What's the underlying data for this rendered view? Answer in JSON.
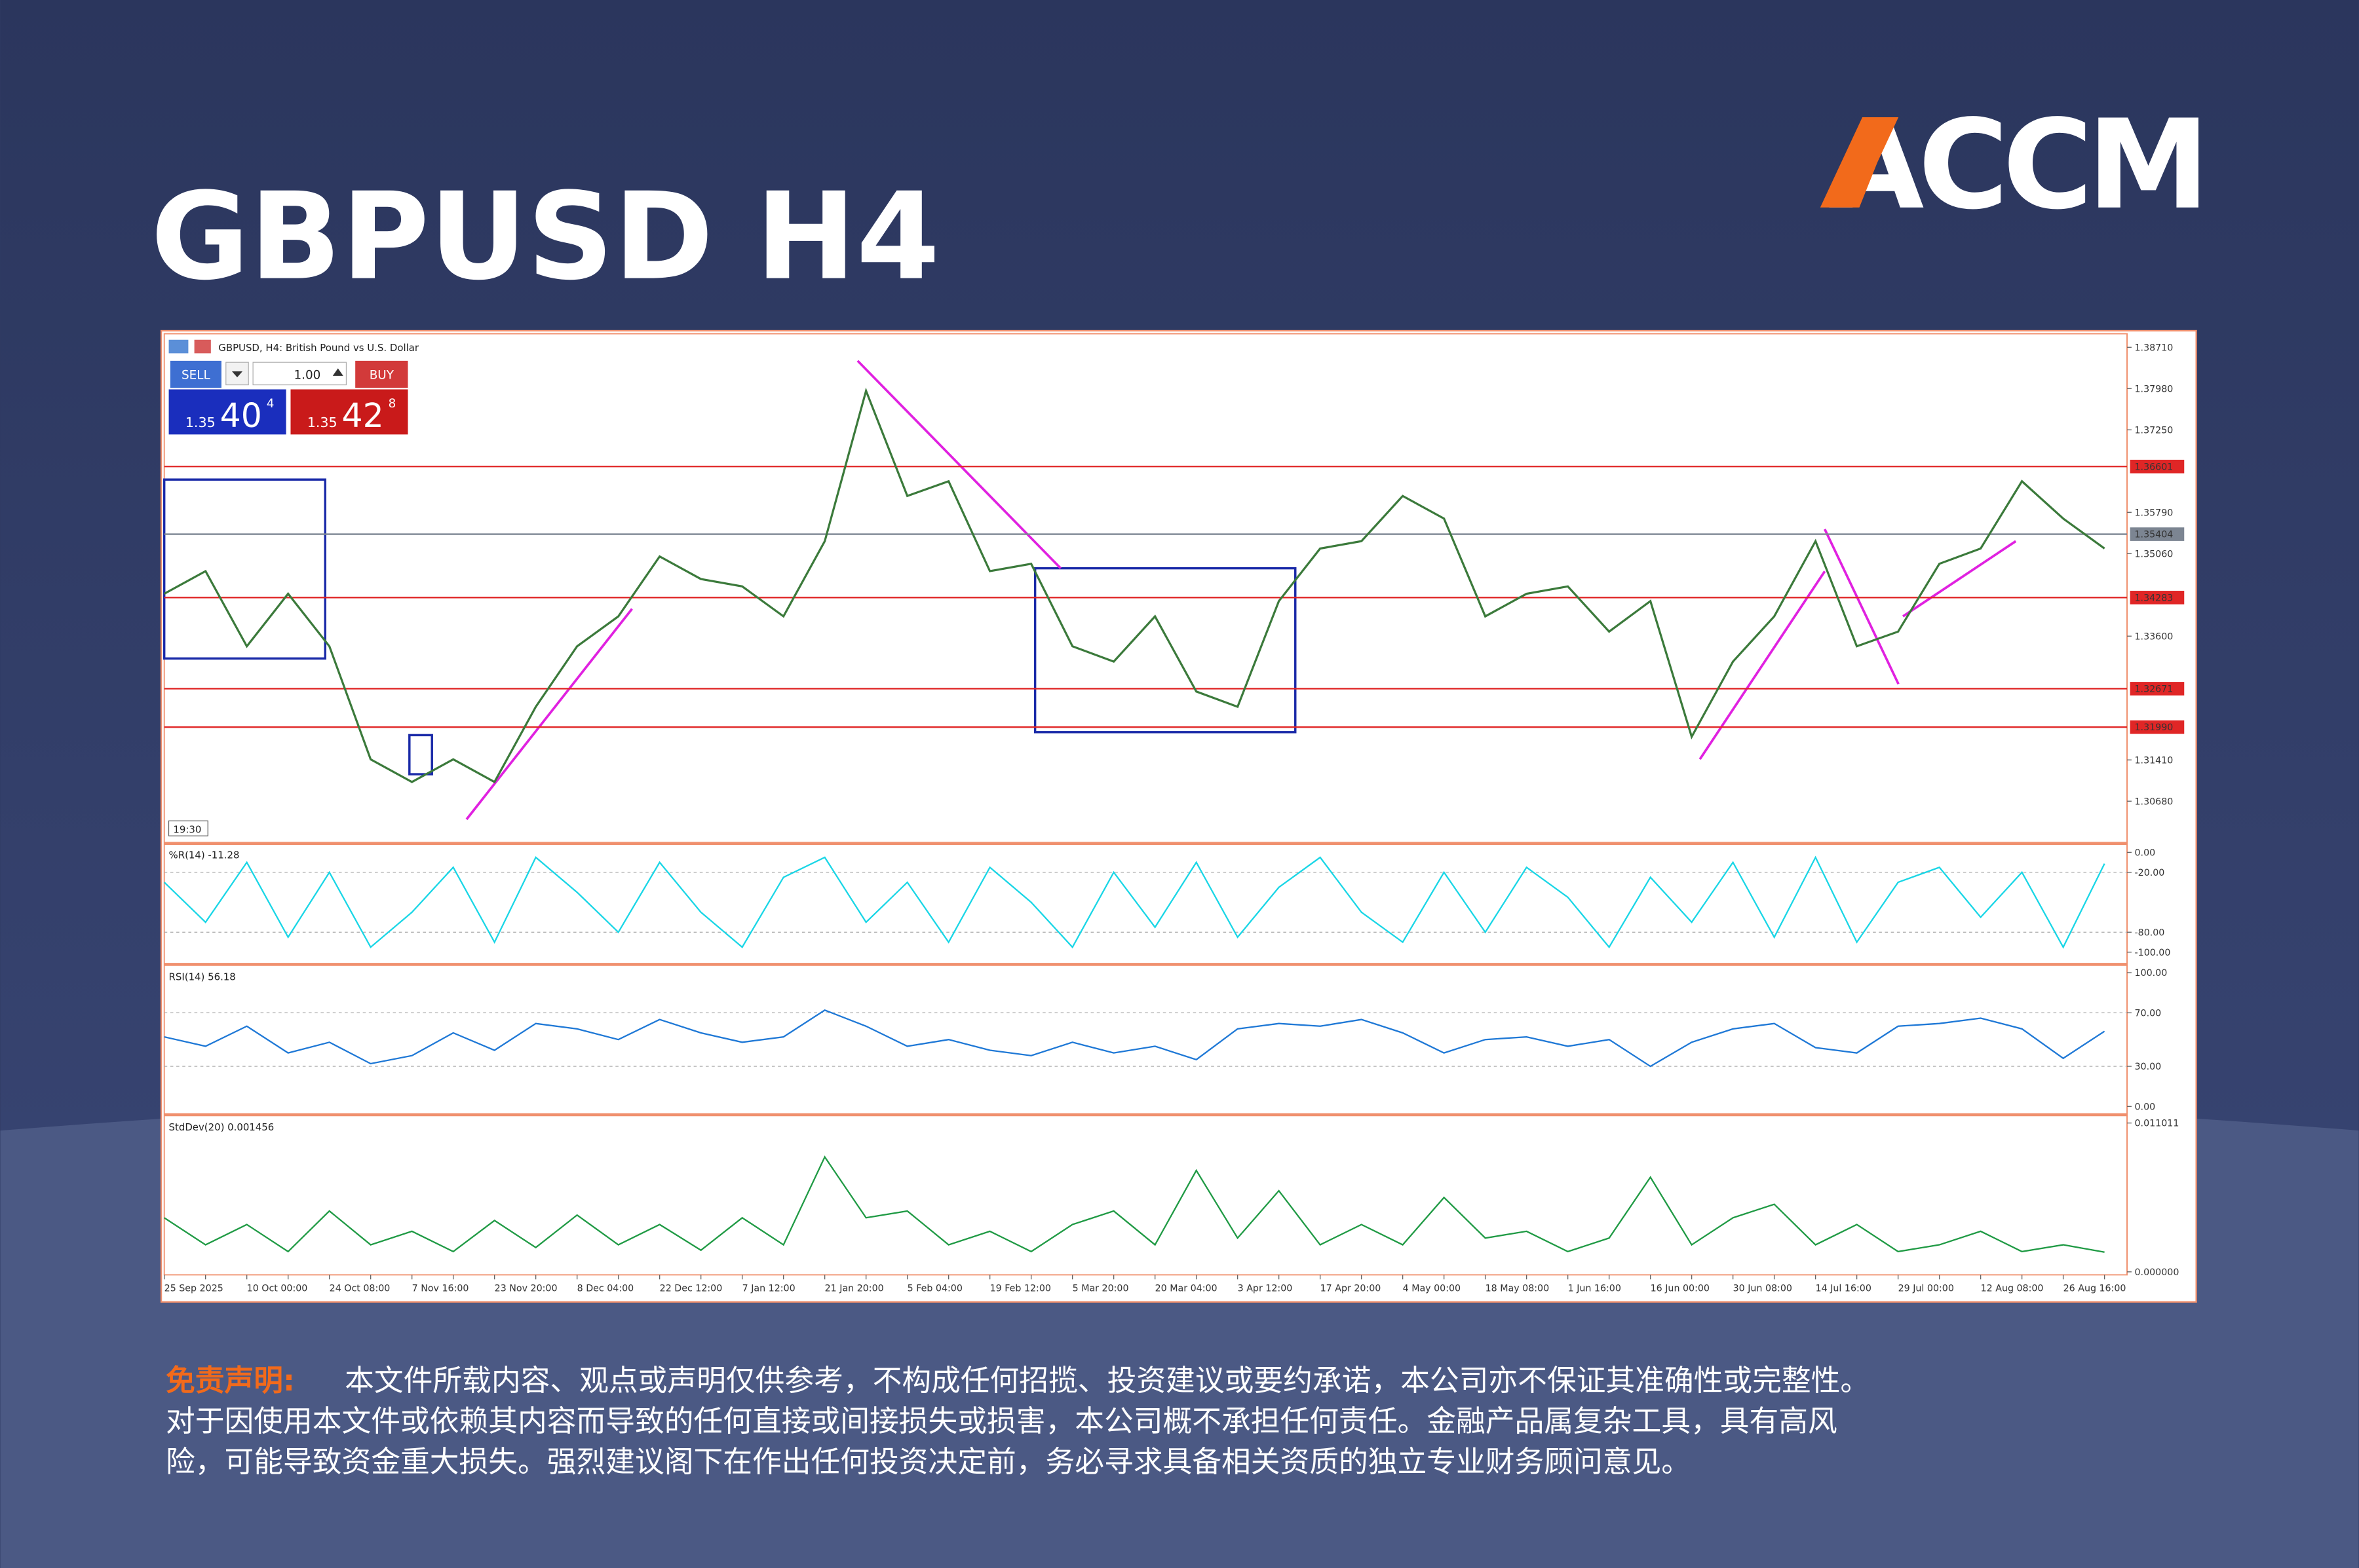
{
  "header": {
    "title": "GBPUSD H4",
    "logo": "ACCM"
  },
  "platform": {
    "caption": "GBPUSD, H4: British Pound vs U.S. Dollar",
    "sell": "SELL",
    "buy": "BUY",
    "volume": "1.00",
    "sell_price": {
      "big": "1.35",
      "pips": "40",
      "point": "4"
    },
    "buy_price": {
      "big": "1.35",
      "pips": "42",
      "point": "8"
    },
    "time": "19:30"
  },
  "chart_data": [
    {
      "type": "line",
      "title": "GBPUSD, H4",
      "color": "#3b7a3b",
      "categories": [
        "25 Sep 2025",
        null,
        "10 Oct 00:00",
        null,
        "24 Oct 08:00",
        null,
        "7 Nov 16:00",
        null,
        "23 Nov 20:00",
        null,
        "8 Dec 04:00",
        null,
        "22 Dec 12:00",
        null,
        "7 Jan 12:00",
        null,
        "21 Jan 20:00",
        null,
        "5 Feb 04:00",
        null,
        "19 Feb 12:00",
        null,
        "5 Mar 20:00",
        null,
        "20 Mar 04:00",
        null,
        "3 Apr 12:00",
        null,
        "17 Apr 20:00",
        null,
        "4 May 00:00",
        null,
        "18 May 08:00",
        null,
        "1 Jun 16:00",
        null,
        "16 Jun 00:00",
        null,
        "30 Jun 08:00",
        null,
        "14 Jul 16:00",
        null,
        "29 Jul 00:00",
        null,
        "12 Aug 08:00",
        null,
        "26 Aug 16:00",
        null
      ],
      "values": [
        1.3435,
        1.3475,
        1.3342,
        1.3435,
        1.3342,
        1.3142,
        1.3102,
        1.3142,
        1.3102,
        1.3235,
        1.3342,
        1.3395,
        1.3501,
        1.3461,
        1.3448,
        1.3395,
        1.3528,
        1.3794,
        1.3608,
        1.3634,
        1.3475,
        1.3488,
        1.3342,
        1.3315,
        1.3395,
        1.3262,
        1.3235,
        1.3422,
        1.3515,
        1.3528,
        1.3608,
        1.3568,
        1.3395,
        1.3435,
        1.3448,
        1.3368,
        1.3422,
        1.3182,
        1.3315,
        1.3395,
        1.3528,
        1.3342,
        1.3368,
        1.3488,
        1.3515,
        1.3634,
        1.3568,
        1.3515
      ],
      "ylim": [
        1.2996,
        1.3895
      ],
      "yticks": [
        {
          "value": 1.3871,
          "label": "1.38710"
        },
        {
          "value": 1.3798,
          "label": "1.37980"
        },
        {
          "value": 1.3725,
          "label": "1.37250"
        },
        {
          "value": 1.3579,
          "label": "1.35790"
        },
        {
          "value": 1.3506,
          "label": "1.35060"
        },
        {
          "value": 1.336,
          "label": "1.33600"
        },
        {
          "value": 1.3141,
          "label": "1.31410"
        },
        {
          "value": 1.3068,
          "label": "1.30680"
        }
      ],
      "hlines": [
        {
          "value": 1.36601,
          "label": "1.36601",
          "color": "#e02626"
        },
        {
          "value": 1.35404,
          "label": "1.35404",
          "color": "#7c8592"
        },
        {
          "value": 1.34283,
          "label": "1.34283",
          "color": "#e02626"
        },
        {
          "value": 1.32671,
          "label": "1.32671",
          "color": "#e02626"
        },
        {
          "value": 1.3199,
          "label": "1.31990",
          "color": "#e02626"
        }
      ]
    },
    {
      "type": "line",
      "title": "%R(14) -11.28",
      "color": "#19d6e6",
      "values": [
        -30,
        -70,
        -10,
        -85,
        -20,
        -95,
        -60,
        -15,
        -90,
        -5,
        -40,
        -80,
        -10,
        -60,
        -95,
        -25,
        -5,
        -70,
        -30,
        -90,
        -15,
        -50,
        -95,
        -20,
        -75,
        -10,
        -85,
        -35,
        -5,
        -60,
        -90,
        -20,
        -80,
        -15,
        -45,
        -95,
        -25,
        -70,
        -10,
        -85,
        -5,
        -90,
        -30,
        -15,
        -65,
        -20,
        -95,
        -11.28
      ],
      "ylim": [
        -110,
        7.5
      ],
      "yticks": [
        {
          "value": 0,
          "label": "0.00"
        },
        {
          "value": -20,
          "label": "-20.00"
        },
        {
          "value": -80,
          "label": "-80.00"
        },
        {
          "value": -100,
          "label": "-100.00"
        }
      ],
      "levels": [
        -20,
        -80
      ]
    },
    {
      "type": "line",
      "title": "RSI(14) 56.18",
      "color": "#1e78d6",
      "values": [
        52,
        45,
        60,
        40,
        48,
        32,
        38,
        55,
        42,
        62,
        58,
        50,
        65,
        55,
        48,
        52,
        72,
        60,
        45,
        50,
        42,
        38,
        48,
        40,
        45,
        35,
        58,
        62,
        60,
        65,
        55,
        40,
        50,
        52,
        45,
        50,
        30,
        48,
        58,
        62,
        44,
        40,
        60,
        62,
        66,
        58,
        36,
        56.18
      ],
      "ylim": [
        -4.5,
        104.5
      ],
      "yticks": [
        {
          "value": 100,
          "label": "100.00"
        },
        {
          "value": 70,
          "label": "70.00"
        },
        {
          "value": 30,
          "label": "30.00"
        },
        {
          "value": 0,
          "label": "0.00"
        }
      ],
      "levels": [
        70,
        30
      ]
    },
    {
      "type": "line",
      "title": "StdDev(20) 0.001456",
      "color": "#1f9a44",
      "values": [
        0.004,
        0.002,
        0.0035,
        0.0015,
        0.0045,
        0.002,
        0.003,
        0.0015,
        0.0038,
        0.0018,
        0.0042,
        0.002,
        0.0035,
        0.0016,
        0.004,
        0.002,
        0.0085,
        0.004,
        0.0045,
        0.002,
        0.003,
        0.0015,
        0.0035,
        0.0045,
        0.002,
        0.0075,
        0.0025,
        0.006,
        0.002,
        0.0035,
        0.002,
        0.0055,
        0.0025,
        0.003,
        0.0015,
        0.0025,
        0.007,
        0.002,
        0.004,
        0.005,
        0.002,
        0.0035,
        0.0015,
        0.002,
        0.003,
        0.0015,
        0.002,
        0.001456
      ],
      "ylim": [
        -0.000222,
        0.011456
      ],
      "yticks": [
        {
          "value": 0.011011,
          "label": "0.011011"
        },
        {
          "value": 0,
          "label": "0.000000"
        }
      ]
    }
  ],
  "disclaimer": {
    "label": "免责声明:",
    "lines": [
      "本文件所载内容、观点或声明仅供参考，不构成任何招揽、投资建议或要约承诺，本公司亦不保证其准确性或完整性。",
      "对于因使用本文件或依赖其内容而导致的任何直接或间接损失或损害，本公司概不承担任何责任。金融产品属复杂工具，具有高风",
      "险，可能导致资金重大损失。强烈建议阁下在作出任何投资决定前，务必寻求具备相关资质的独立专业财务顾问意见。"
    ]
  }
}
